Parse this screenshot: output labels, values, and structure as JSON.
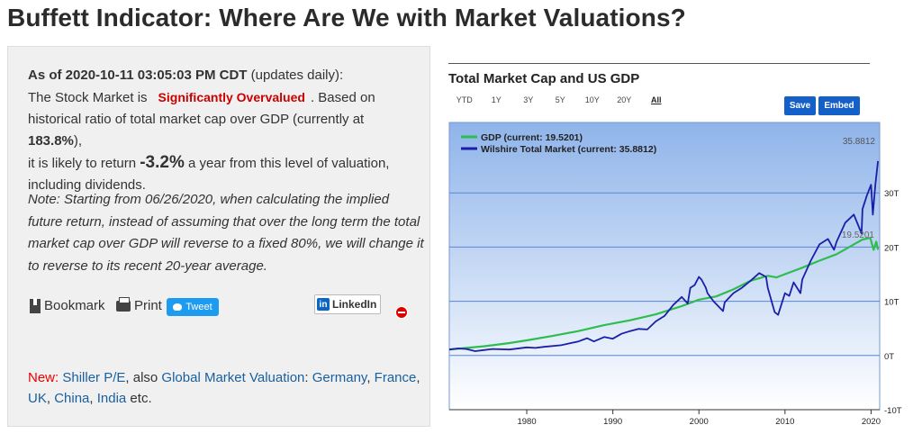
{
  "page": {
    "title": "Buffett Indicator: Where Are We with Market Valuations?"
  },
  "summary": {
    "as_of": "As of 2020-10-11 03:05:03 PM CDT",
    "updates": " (updates daily):",
    "line2_a": "The Stock Market is",
    "valuation": "Significantly Overvalued",
    "line2_b": ". Based on",
    "line3": "historical ratio of total market cap over GDP (currently at ",
    "ratio": "183.8%",
    "line3_b": "),",
    "line4_a": "it is likely to return ",
    "return": "-3.2%",
    "line4_b": " a year from this level of valuation,",
    "line5": "including dividends."
  },
  "note": "Note: Starting from 06/26/2020, when calculating the implied future return, instead of assuming that over the long term the total market cap over GDP will reverse to a fixed 80%, we will change it to reverse to its recent 20-year average.",
  "actions": {
    "bookmark": "Bookmark",
    "print": "Print",
    "tweet": "Tweet",
    "linkedin": "LinkedIn"
  },
  "links": {
    "new": "New:",
    "shiller": "Shiller P/E",
    "also": ", also ",
    "global": "Global Market Valuation",
    "colon": ": ",
    "germany": "Germany",
    "france": "France",
    "uk": "UK",
    "china": "China",
    "india": "India",
    "etc": " etc."
  },
  "chart_panel": {
    "title": "Total Market Cap and US GDP",
    "ranges": [
      "YTD",
      "1Y",
      "3Y",
      "5Y",
      "10Y",
      "20Y",
      "All"
    ],
    "selected_range": "All",
    "save_label": "Save",
    "embed_label": "Embed"
  },
  "chart_data": {
    "type": "line",
    "x_range": [
      1971,
      2021
    ],
    "ylim": [
      -10,
      43
    ],
    "y_ticks": [
      -10,
      0,
      10,
      20,
      30
    ],
    "y_tick_labels": [
      "-10T",
      "0T",
      "10T",
      "20T",
      "30T"
    ],
    "x_ticks": [
      1980,
      1990,
      2000,
      2010,
      2020
    ],
    "legend_position": "top-left",
    "grid": true,
    "last_labels": {
      "gdp": "19.5201",
      "wilshire": "35.8812"
    },
    "colors": {
      "gdp": "#2ebd4f",
      "wilshire": "#1a1fa8"
    },
    "series": [
      {
        "name": "GDP",
        "legend": "GDP (current: 19.5201)",
        "x": [
          1971,
          1973,
          1975,
          1978,
          1980,
          1983,
          1986,
          1989,
          1992,
          1995,
          1998,
          2000,
          2002,
          2004,
          2006,
          2008,
          2009,
          2010,
          2012,
          2014,
          2016,
          2018,
          2019,
          2019.9,
          2020.3,
          2020.6,
          2020.8
        ],
        "y": [
          1.1,
          1.4,
          1.7,
          2.3,
          2.8,
          3.6,
          4.5,
          5.6,
          6.5,
          7.6,
          9.1,
          10.3,
          10.9,
          12.2,
          13.8,
          14.7,
          14.4,
          15.0,
          16.2,
          17.5,
          18.7,
          20.5,
          21.4,
          21.7,
          19.5,
          21.0,
          19.5
        ]
      },
      {
        "name": "Wilshire Total Market",
        "legend": "Wilshire Total Market (current: 35.8812)",
        "x": [
          1971,
          1972,
          1973,
          1974,
          1975,
          1976,
          1978,
          1980,
          1981,
          1982,
          1984,
          1986,
          1987,
          1987.8,
          1989,
          1990,
          1991,
          1992,
          1993,
          1994,
          1995,
          1996,
          1997,
          1998,
          1998.7,
          1999,
          1999.5,
          2000,
          2000.3,
          2000.8,
          2001,
          2001.7,
          2002,
          2002.8,
          2003,
          2004,
          2005,
          2006,
          2007,
          2007.8,
          2008,
          2008.8,
          2009.2,
          2010,
          2010.5,
          2011,
          2011.8,
          2012,
          2013,
          2014,
          2015,
          2015.7,
          2016,
          2017,
          2018,
          2018.9,
          2019,
          2019.5,
          2020,
          2020.2,
          2020.5,
          2020.8
        ],
        "y": [
          1.1,
          1.3,
          1.2,
          0.8,
          1.0,
          1.2,
          1.1,
          1.5,
          1.4,
          1.6,
          1.9,
          2.6,
          3.2,
          2.6,
          3.4,
          3.1,
          4.0,
          4.5,
          4.9,
          4.8,
          6.3,
          7.3,
          9.3,
          10.8,
          9.6,
          12.5,
          13.0,
          14.5,
          14.0,
          12.5,
          11.5,
          10.0,
          9.5,
          8.2,
          9.8,
          11.5,
          12.5,
          13.8,
          15.2,
          14.5,
          12.5,
          8.0,
          7.5,
          11.5,
          11.0,
          13.5,
          11.5,
          14.0,
          17.5,
          20.5,
          21.5,
          19.5,
          21.0,
          24.5,
          26.0,
          22.5,
          27.0,
          29.5,
          31.5,
          26.0,
          31.5,
          35.88
        ]
      }
    ]
  }
}
